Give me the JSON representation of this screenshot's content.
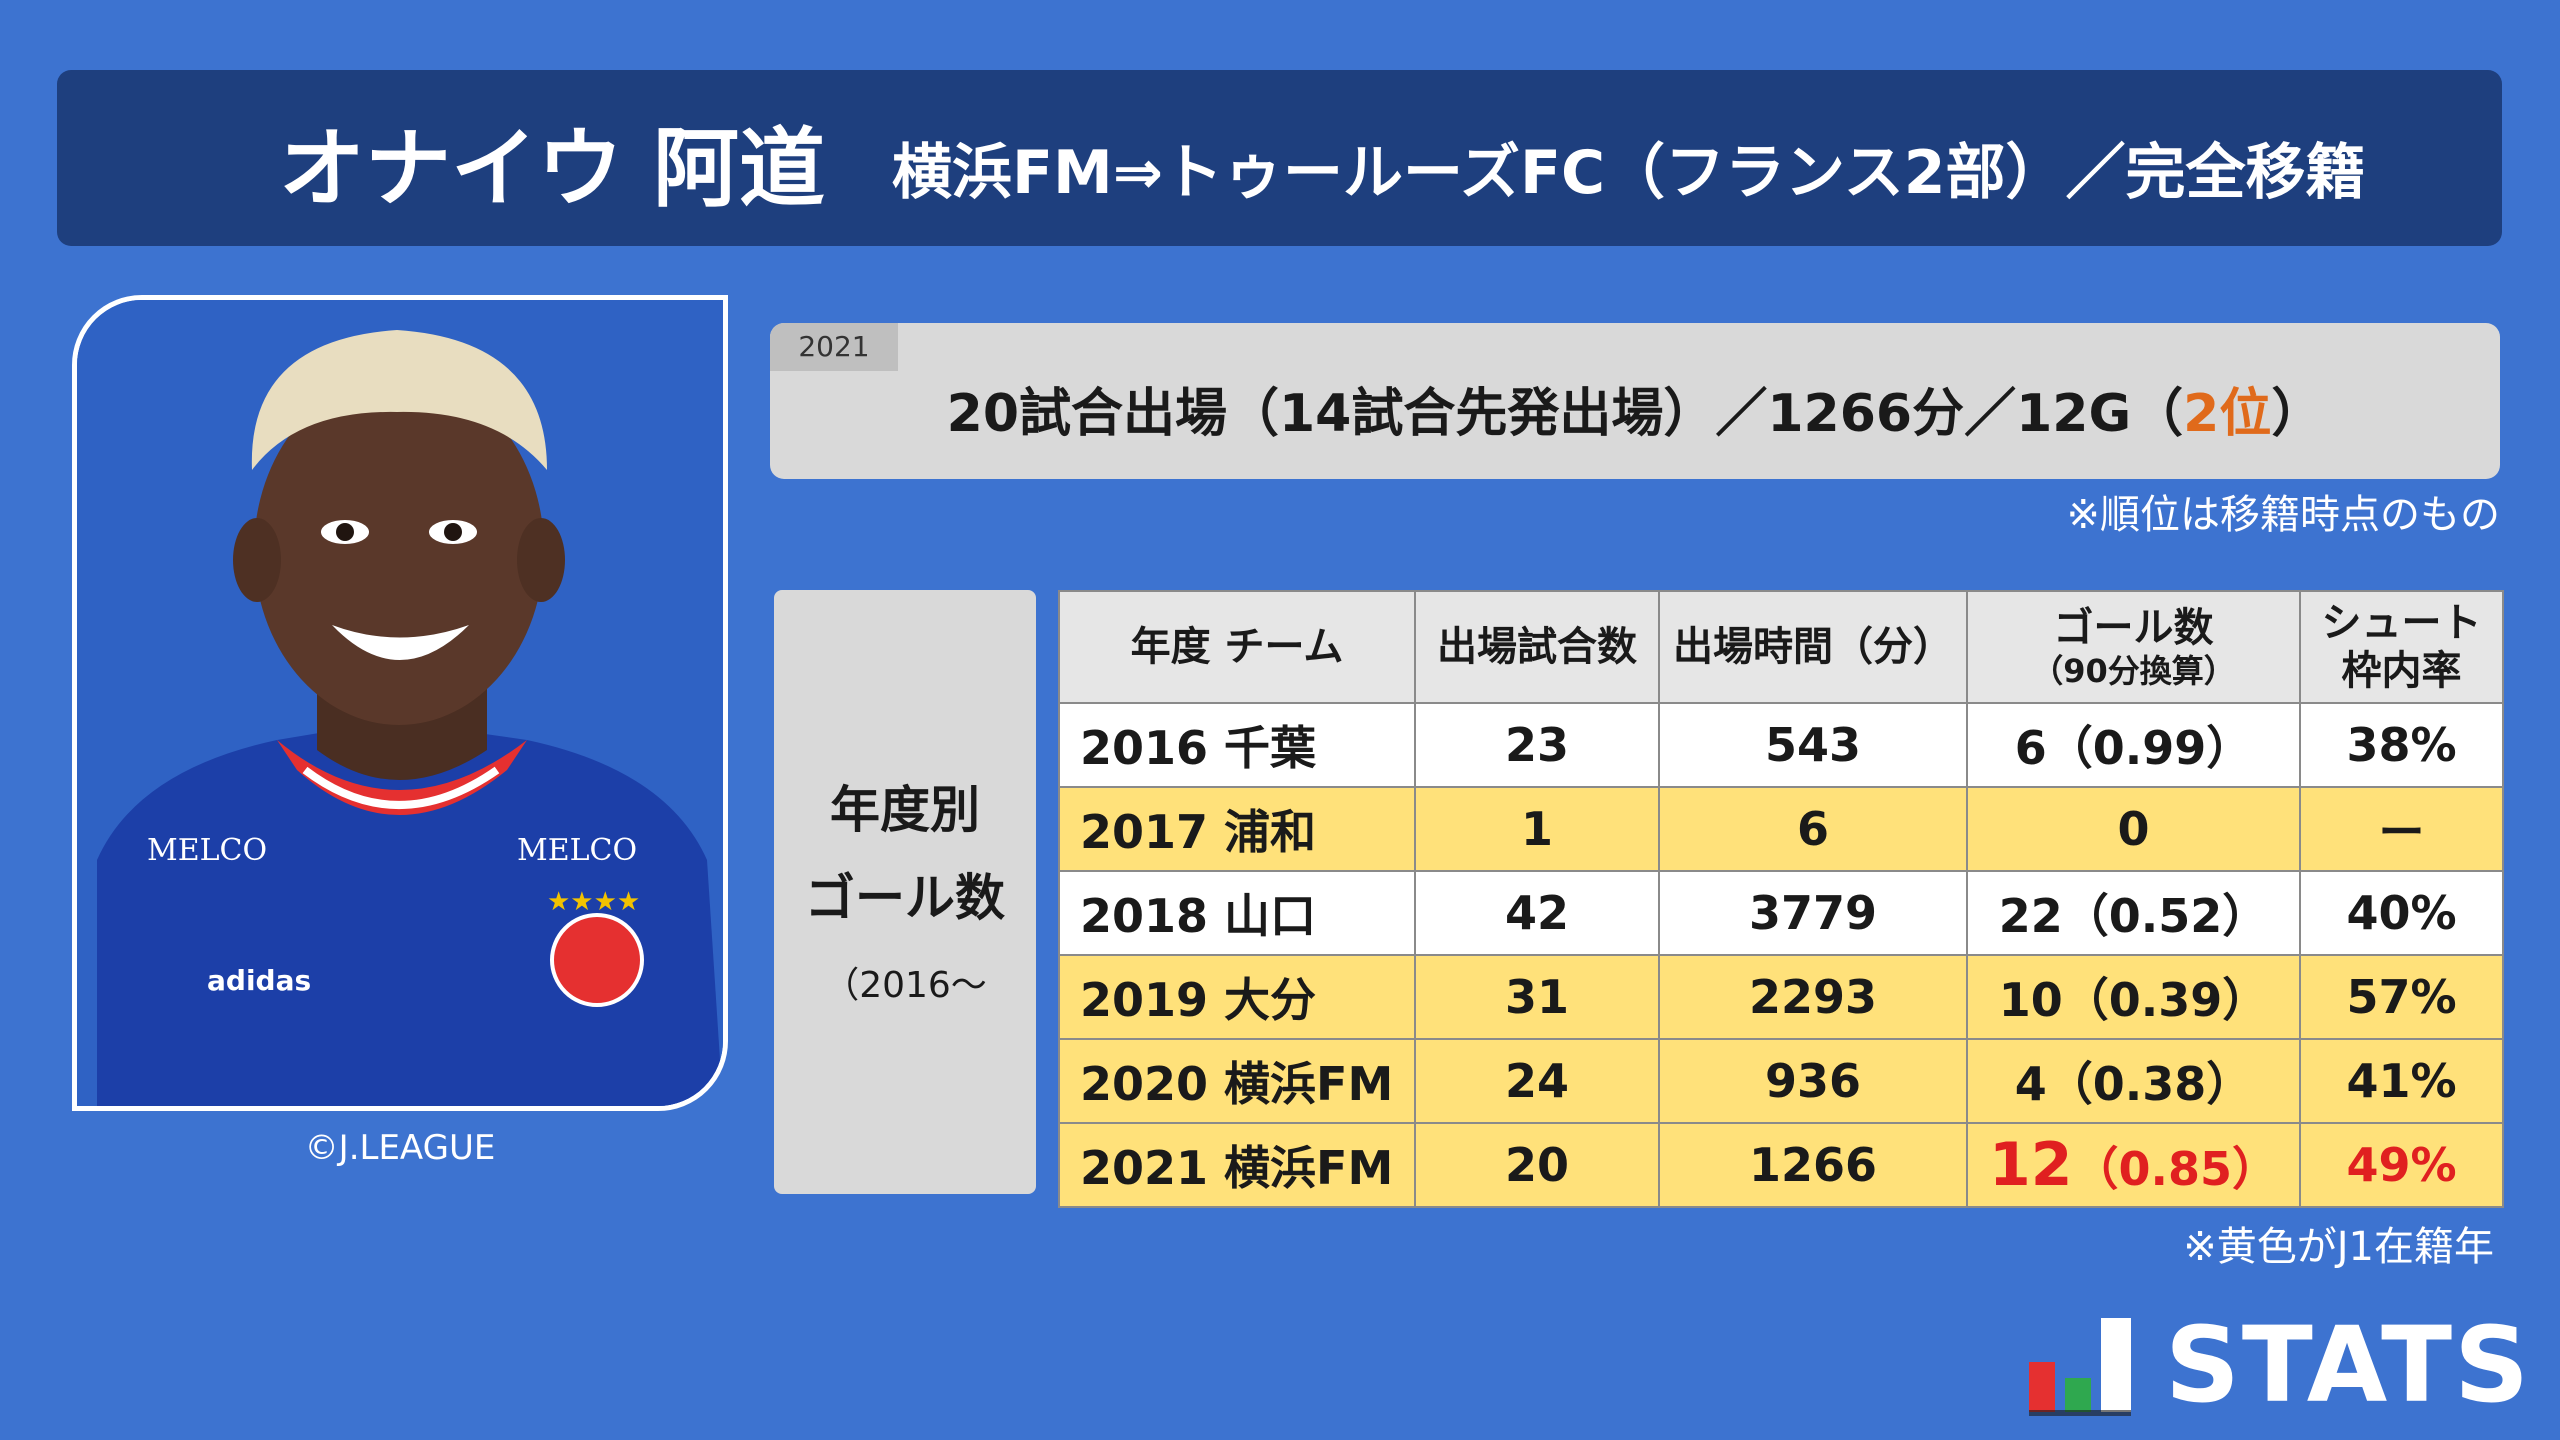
{
  "header": {
    "player_name": "オナイウ 阿道",
    "transfer": "横浜FM⇒トゥールーズFC（フランス2部）／完全移籍"
  },
  "photo": {
    "credit": "©J.LEAGUE",
    "sponsor": "MELCO",
    "brand": "adidas"
  },
  "summary": {
    "year": "2021",
    "line_prefix": "20試合出場（14試合先発出場）／1266分／12G（",
    "rank": "2位",
    "line_suffix": "）",
    "rank_color": "#e06a1b"
  },
  "note_rank": "※順位は移籍時点のもの",
  "side_label": {
    "line1": "年度別",
    "line2": "ゴール数",
    "line3": "（2016～"
  },
  "table": {
    "headers": {
      "team": "年度 チーム",
      "games": "出場試合数",
      "minutes": "出場時間（分）",
      "goals": "ゴール数",
      "goals_sub": "（90分換算）",
      "shot1": "シュート",
      "shot2": "枠内率"
    },
    "rows": [
      {
        "team": "2016 千葉",
        "games": "23",
        "minutes": "543",
        "goals": "6（0.99）",
        "shot": "38%",
        "j1": false
      },
      {
        "team": "2017 浦和",
        "games": "1",
        "minutes": "6",
        "goals": "0",
        "shot": "ー",
        "j1": true
      },
      {
        "team": "2018 山口",
        "games": "42",
        "minutes": "3779",
        "goals": "22（0.52）",
        "shot": "40%",
        "j1": false
      },
      {
        "team": "2019 大分",
        "games": "31",
        "minutes": "2293",
        "goals": "10（0.39）",
        "shot": "57%",
        "j1": true
      },
      {
        "team": "2020 横浜FM",
        "games": "24",
        "minutes": "936",
        "goals": "4（0.38）",
        "shot": "41%",
        "j1": true
      },
      {
        "team": "2021 横浜FM",
        "games": "20",
        "minutes": "1266",
        "goals_big": "12",
        "goals_rest": "（0.85）",
        "shot": "49%",
        "j1": true
      }
    ],
    "j1_color": "#ffe17a",
    "highlight_color": "#e02020"
  },
  "note_j1": "※黄色がJ1在籍年",
  "logo": {
    "text": "STATS"
  },
  "colors": {
    "background": "#3d73d0",
    "header": "#1e3f7e"
  }
}
